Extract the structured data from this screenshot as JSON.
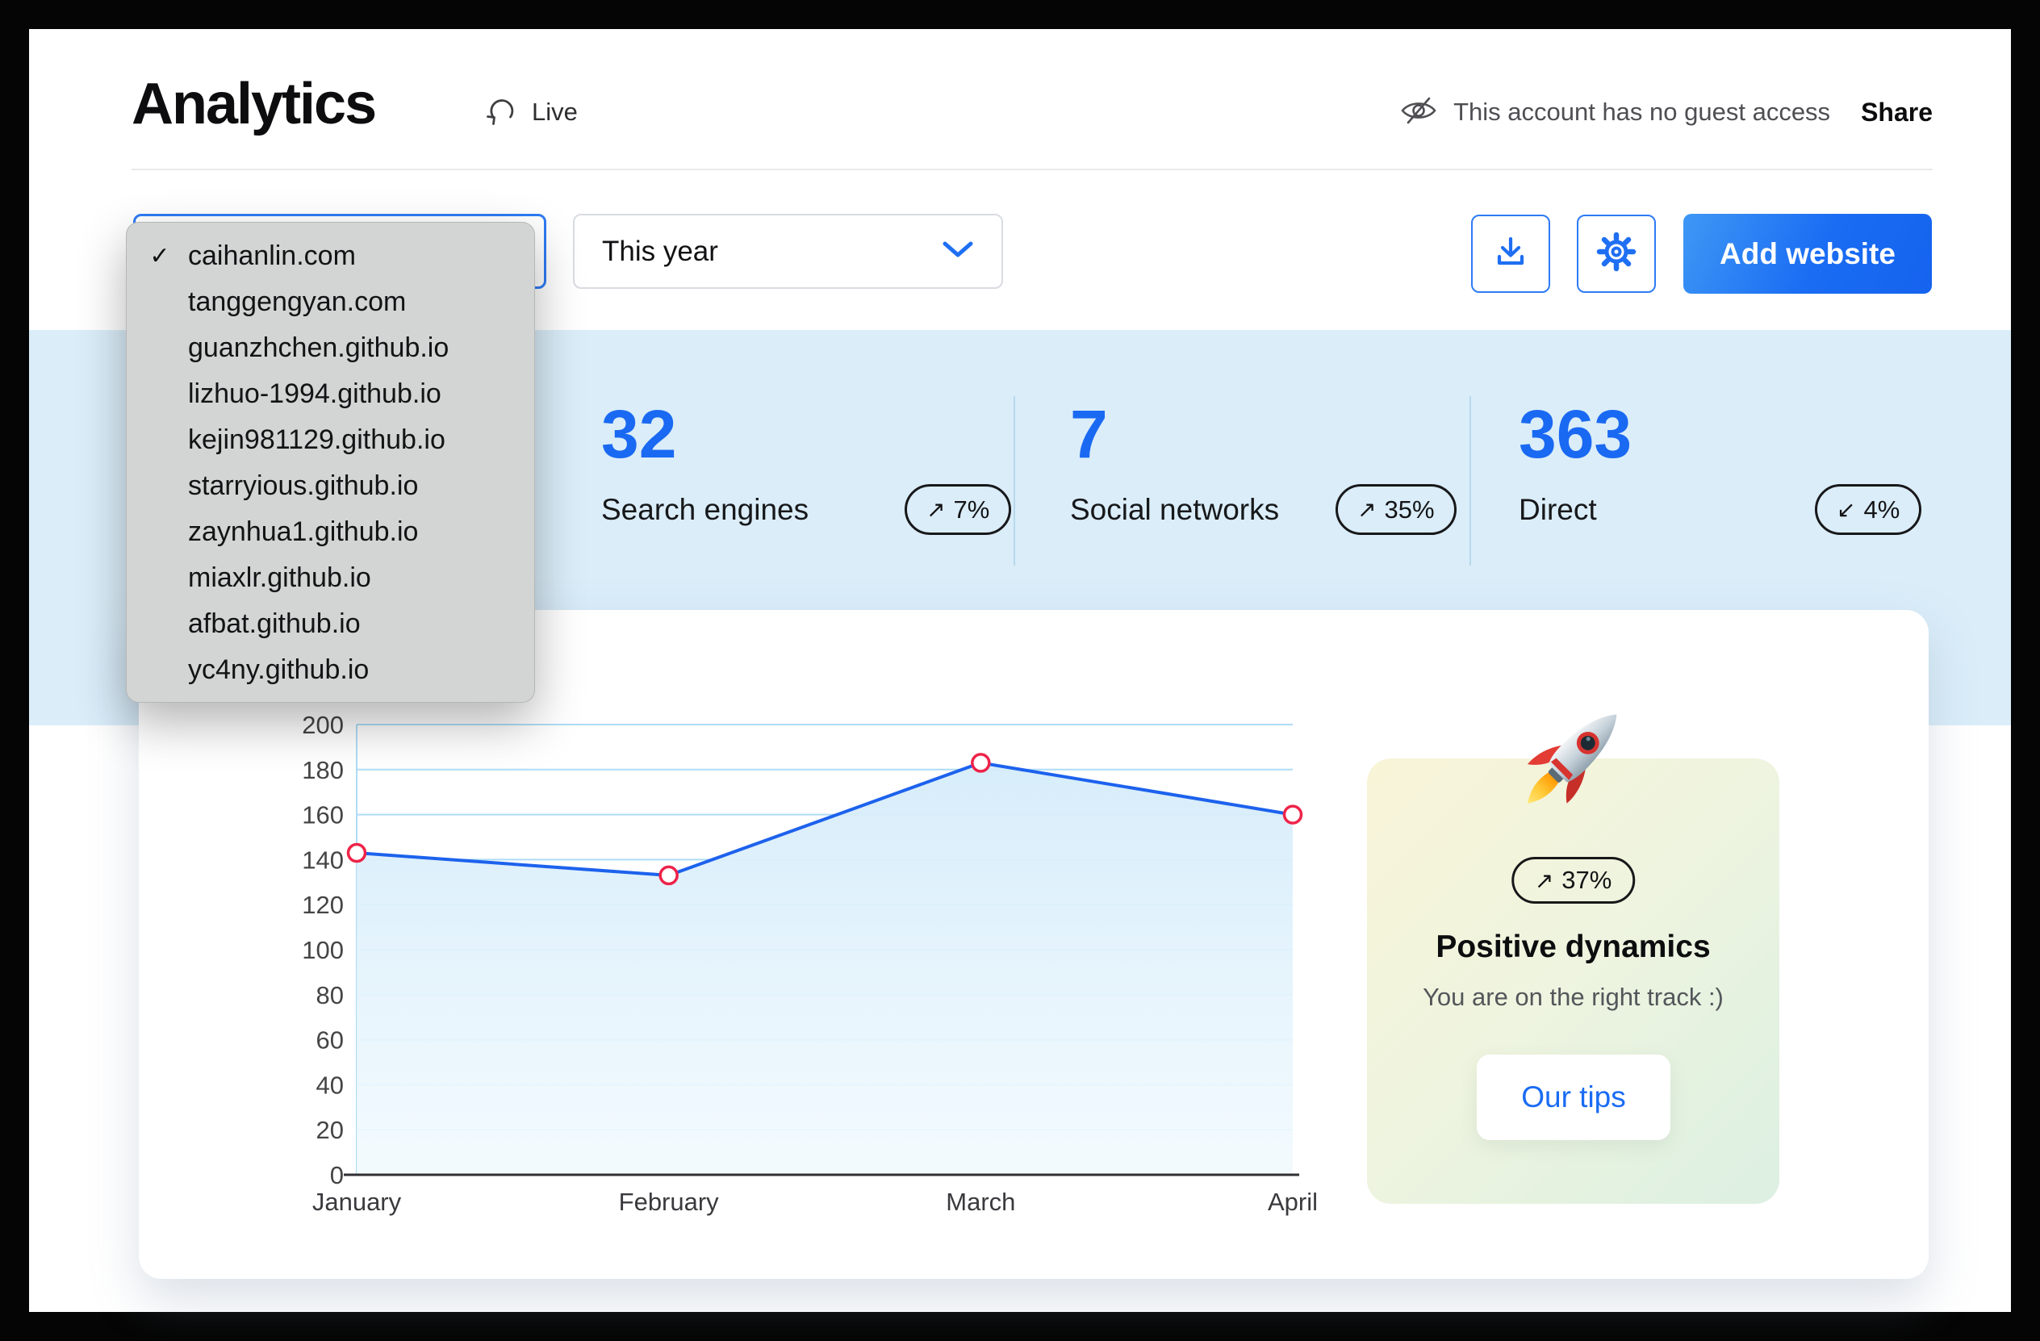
{
  "app": {
    "title": "Analytics",
    "live_label": "Live"
  },
  "header": {
    "guest_note": "This account has no guest access",
    "share_label": "Share"
  },
  "toolbar": {
    "website_select": {
      "selected": "caihanlin.com",
      "checkmark": "✓",
      "options": [
        "caihanlin.com",
        "tanggengyan.com",
        "guanzhchen.github.io",
        "lizhuo-1994.github.io",
        "kejin981129.github.io",
        "starryious.github.io",
        "zaynhua1.github.io",
        "miaxlr.github.io",
        "afbat.github.io",
        "yc4ny.github.io"
      ]
    },
    "period_select": {
      "value": "This year"
    },
    "download_icon": "download-icon",
    "settings_icon": "gear-icon",
    "add_website_label": "Add website"
  },
  "stats": [
    {
      "value": "32",
      "label": "Search engines",
      "arrow": "↗",
      "delta": "7%"
    },
    {
      "value": "7",
      "label": "Social networks",
      "arrow": "↗",
      "delta": "35%"
    },
    {
      "value": "363",
      "label": "Direct",
      "arrow": "↙",
      "delta": "4%"
    }
  ],
  "tips_card": {
    "arrow": "↗",
    "delta": "37%",
    "title": "Positive dynamics",
    "subtitle": "You are on the right track :)",
    "button_label": "Our tips",
    "rocket_icon": "rocket-emoji"
  },
  "chart_data": {
    "type": "line",
    "x": [
      "January",
      "February",
      "March",
      "April"
    ],
    "values": [
      143,
      133,
      183,
      160
    ],
    "ylim": [
      0,
      200
    ],
    "ytick_step": 20,
    "grid": true,
    "legend": "none",
    "line_color": "#1d62ed",
    "point_color": "#ee2349",
    "area_fill_top": "#d5ecfa",
    "area_fill_bottom": "#f2fafe"
  },
  "colors": {
    "accent_blue": "#1a69f2",
    "band_blue": "#daedf9",
    "grid_blue": "#aedcf6",
    "axis_dark": "#2f2f33"
  }
}
